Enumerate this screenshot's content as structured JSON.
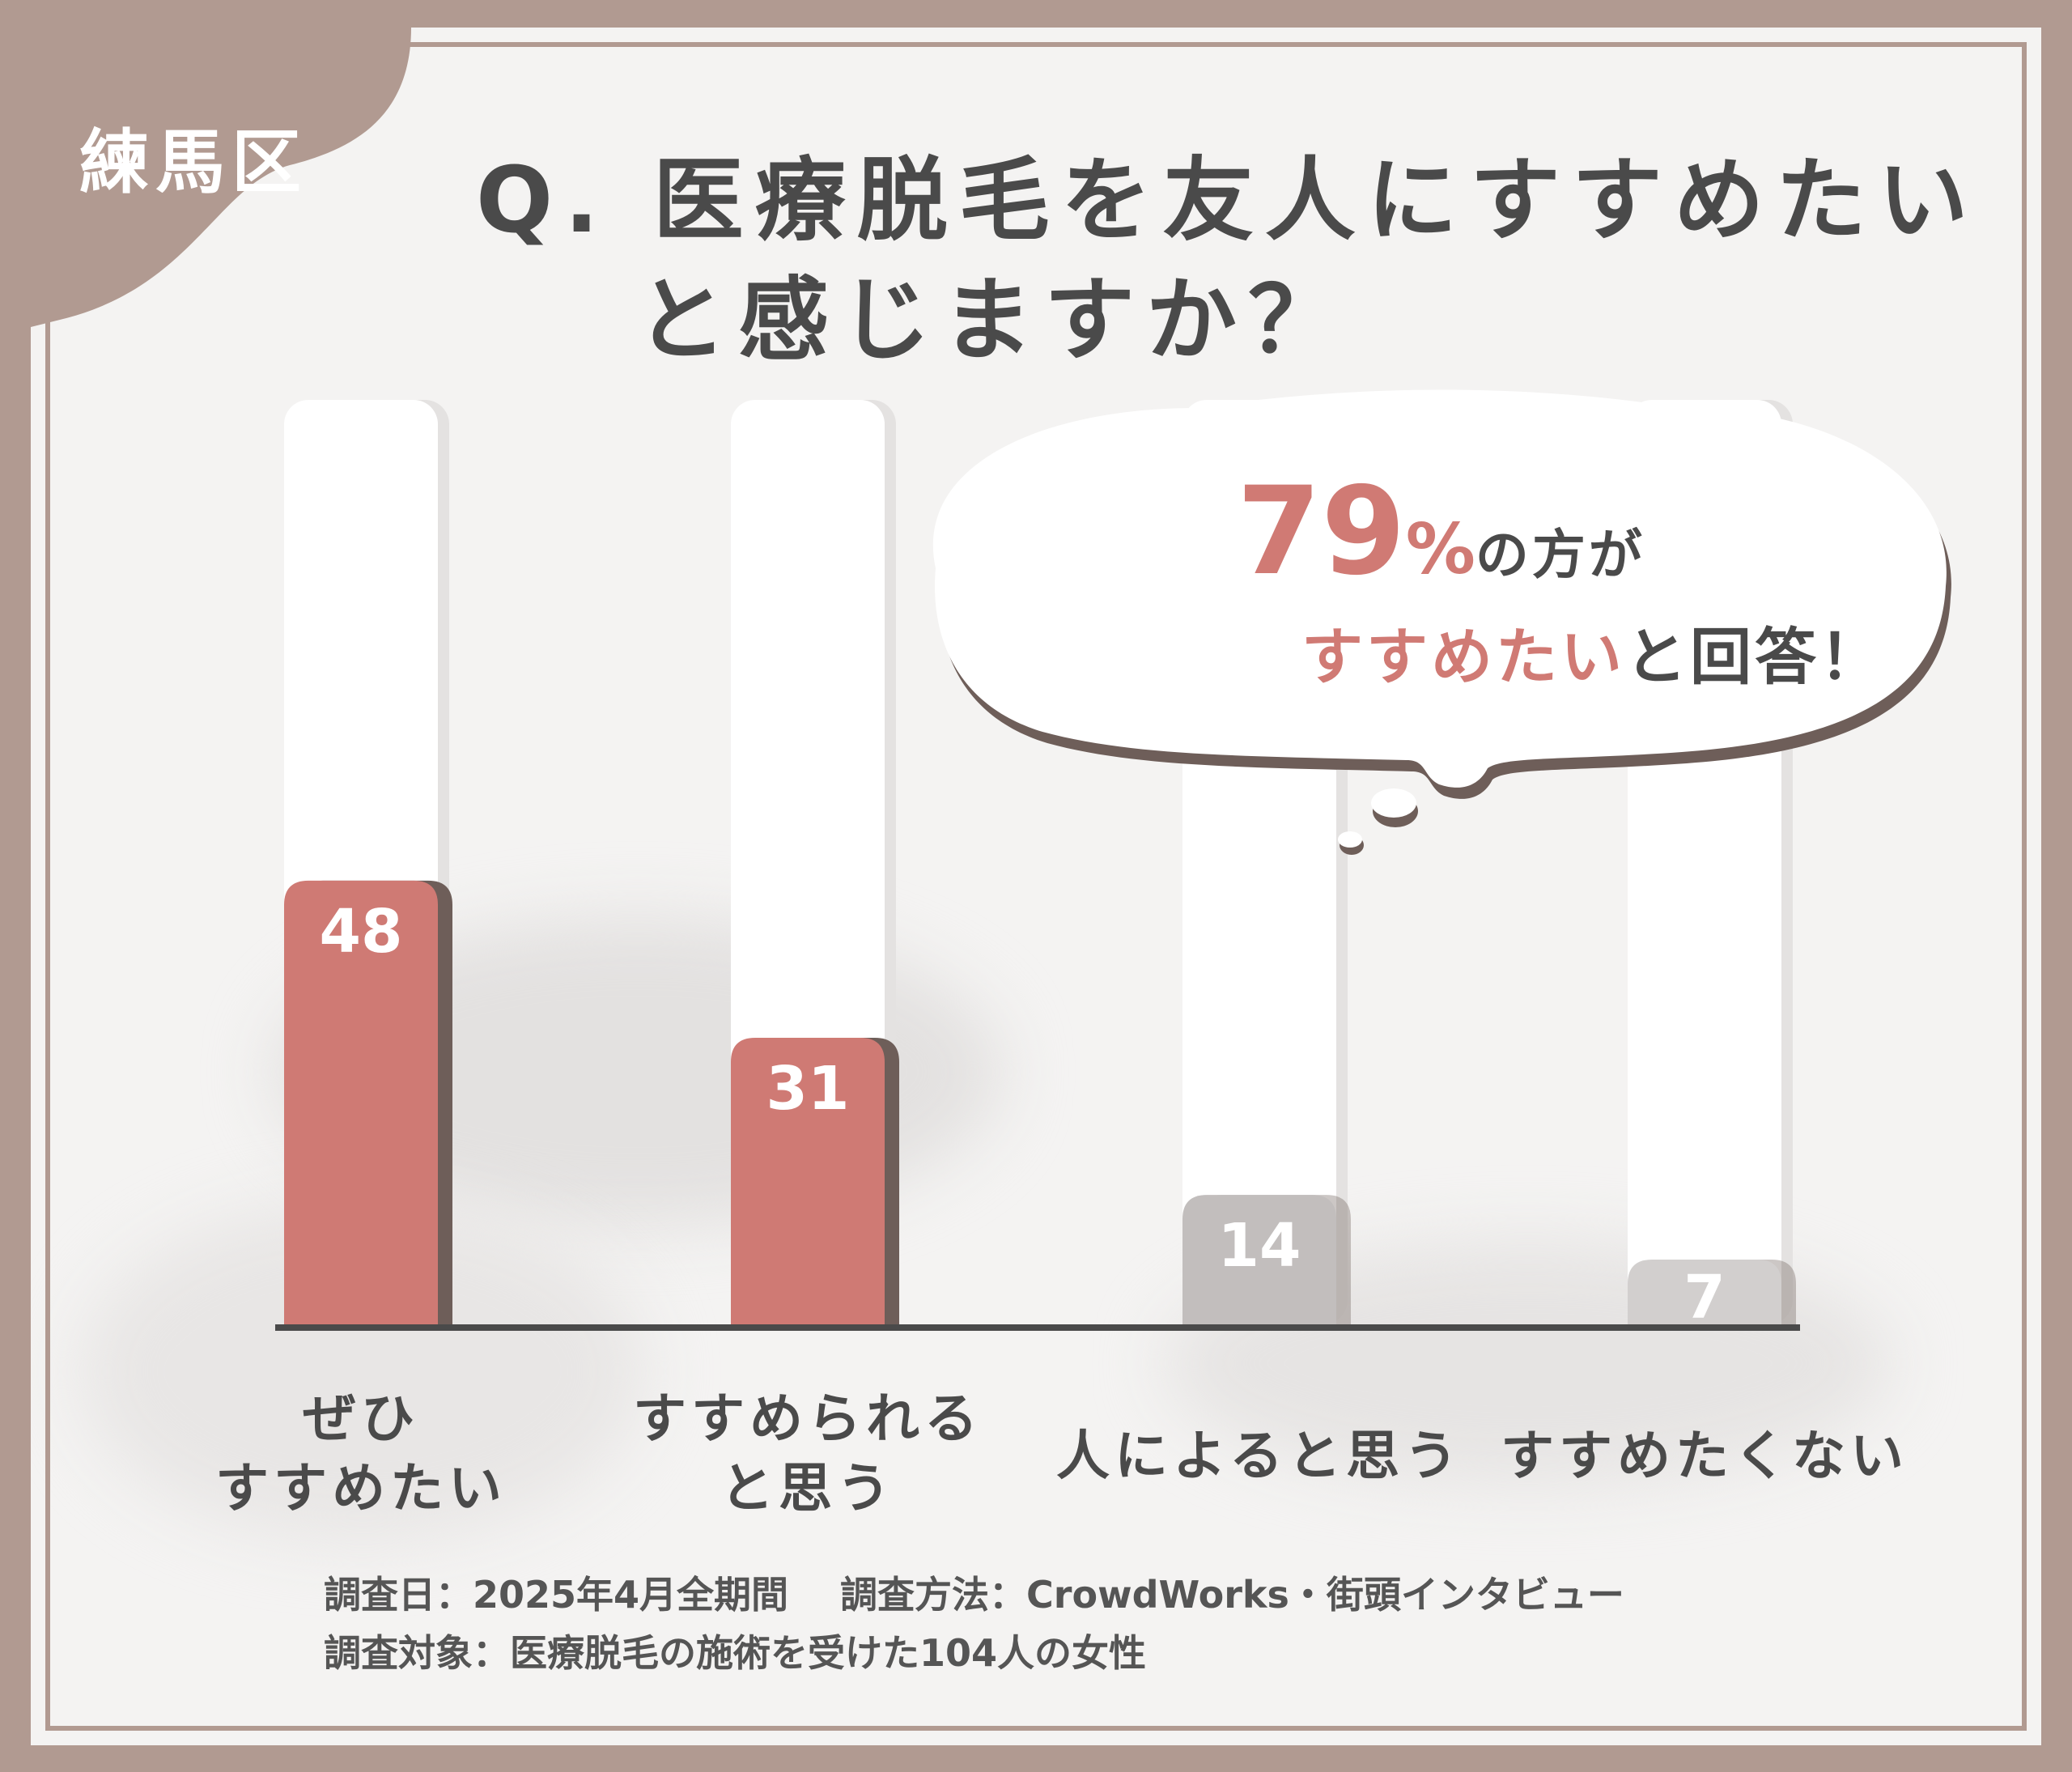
{
  "district": "練馬区",
  "title": {
    "line1": "Q. 医療脱毛を友人にすすめたい",
    "line2": "と感じますか？"
  },
  "callout": {
    "number": "79",
    "percent": "%",
    "line1_rest": "の方が",
    "line2_accent": "すすめたい",
    "line2_rest": "と回答！"
  },
  "chart_data": {
    "type": "bar",
    "categories": [
      [
        "ぜひ",
        "すすめたい"
      ],
      [
        "すすめられる",
        "と思う"
      ],
      [
        "人によると思う"
      ],
      [
        "すすめたくない"
      ]
    ],
    "values": [
      48,
      31,
      14,
      7
    ],
    "bar_colors": [
      "#cf7a74",
      "#cf7a74",
      "#c2bebd",
      "#d2cfce"
    ],
    "bar_shadow_color": "#6e5e59",
    "value_label_color": "#ffffff",
    "ylim": [
      0,
      100
    ],
    "grid": false,
    "legend": "none"
  },
  "footer": {
    "line1a": "調査日：2025年4月全期間",
    "line1b": "調査方法：CrowdWorks・街頭インタビュー",
    "line2": "調査対象：医療脱毛の施術を受けた104人の女性"
  },
  "colors": {
    "frame": "#b19a91",
    "accent": "#cf7a74",
    "text": "#4a4a4a",
    "axis": "#4a4a4a"
  }
}
